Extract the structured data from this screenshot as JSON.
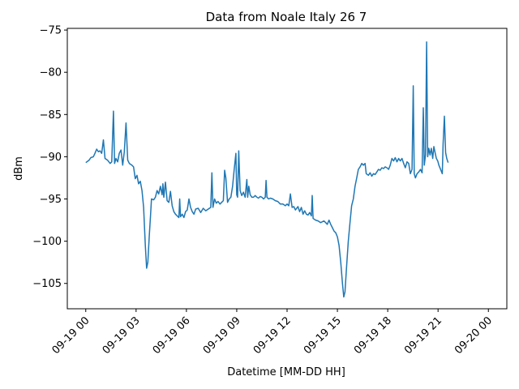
{
  "chart_data": {
    "type": "line",
    "title": "Data from Noale Italy 26 7",
    "xlabel": "Datetime [MM-DD HH]",
    "ylabel": "dBm",
    "x_ticks": [
      "09-19 00",
      "09-19 03",
      "09-19 06",
      "09-19 09",
      "09-19 12",
      "09-19 15",
      "09-19 18",
      "09-19 21",
      "09-20 00"
    ],
    "y_ticks": [
      -75,
      -80,
      -85,
      -90,
      -95,
      -100,
      -105
    ],
    "xlim_hours": [
      -1.1,
      25.1
    ],
    "ylim": [
      -108,
      -74.8
    ],
    "grid": false,
    "series": [
      {
        "color": "#1f77b4",
        "points": [
          [
            0.0,
            -90.7
          ],
          [
            0.2,
            -90.4
          ],
          [
            0.3,
            -90.1
          ],
          [
            0.45,
            -90.0
          ],
          [
            0.55,
            -89.6
          ],
          [
            0.65,
            -89.1
          ],
          [
            0.75,
            -89.4
          ],
          [
            0.85,
            -89.3
          ],
          [
            0.95,
            -89.6
          ],
          [
            1.05,
            -88.0
          ],
          [
            1.15,
            -90.2
          ],
          [
            1.3,
            -90.4
          ],
          [
            1.45,
            -90.8
          ],
          [
            1.55,
            -90.6
          ],
          [
            1.65,
            -84.6
          ],
          [
            1.72,
            -90.8
          ],
          [
            1.8,
            -90.2
          ],
          [
            1.9,
            -90.6
          ],
          [
            2.0,
            -89.6
          ],
          [
            2.1,
            -89.2
          ],
          [
            2.2,
            -91.0
          ],
          [
            2.3,
            -89.4
          ],
          [
            2.4,
            -86.0
          ],
          [
            2.5,
            -90.4
          ],
          [
            2.6,
            -90.8
          ],
          [
            2.75,
            -91.0
          ],
          [
            2.85,
            -91.2
          ],
          [
            2.95,
            -92.6
          ],
          [
            3.05,
            -92.2
          ],
          [
            3.15,
            -93.2
          ],
          [
            3.25,
            -92.9
          ],
          [
            3.35,
            -94.0
          ],
          [
            3.45,
            -96.0
          ],
          [
            3.55,
            -100.5
          ],
          [
            3.63,
            -103.2
          ],
          [
            3.7,
            -102.5
          ],
          [
            3.78,
            -99.5
          ],
          [
            3.86,
            -97.0
          ],
          [
            3.92,
            -95.0
          ],
          [
            4.05,
            -95.1
          ],
          [
            4.15,
            -94.8
          ],
          [
            4.25,
            -94.0
          ],
          [
            4.35,
            -94.4
          ],
          [
            4.45,
            -93.5
          ],
          [
            4.55,
            -94.5
          ],
          [
            4.6,
            -93.2
          ],
          [
            4.65,
            -94.8
          ],
          [
            4.75,
            -93.0
          ],
          [
            4.85,
            -95.2
          ],
          [
            4.95,
            -95.4
          ],
          [
            5.05,
            -94.1
          ],
          [
            5.15,
            -95.8
          ],
          [
            5.25,
            -96.5
          ],
          [
            5.35,
            -96.8
          ],
          [
            5.45,
            -97.0
          ],
          [
            5.55,
            -97.2
          ],
          [
            5.6,
            -95.0
          ],
          [
            5.65,
            -97.1
          ],
          [
            5.75,
            -96.8
          ],
          [
            5.85,
            -97.2
          ],
          [
            5.95,
            -96.5
          ],
          [
            6.05,
            -96.3
          ],
          [
            6.15,
            -95.0
          ],
          [
            6.25,
            -96.0
          ],
          [
            6.35,
            -96.5
          ],
          [
            6.45,
            -96.8
          ],
          [
            6.55,
            -96.2
          ],
          [
            6.7,
            -96.1
          ],
          [
            6.85,
            -96.6
          ],
          [
            7.0,
            -96.1
          ],
          [
            7.15,
            -96.4
          ],
          [
            7.3,
            -96.2
          ],
          [
            7.45,
            -96.0
          ],
          [
            7.52,
            -91.9
          ],
          [
            7.58,
            -96.0
          ],
          [
            7.68,
            -95.0
          ],
          [
            7.78,
            -95.5
          ],
          [
            7.88,
            -95.3
          ],
          [
            8.0,
            -95.6
          ],
          [
            8.1,
            -95.4
          ],
          [
            8.2,
            -95.2
          ],
          [
            8.28,
            -91.6
          ],
          [
            8.35,
            -92.5
          ],
          [
            8.45,
            -95.4
          ],
          [
            8.55,
            -95.0
          ],
          [
            8.65,
            -94.8
          ],
          [
            8.75,
            -93.5
          ],
          [
            8.85,
            -91.5
          ],
          [
            8.95,
            -89.6
          ],
          [
            9.0,
            -94.5
          ],
          [
            9.05,
            -94.8
          ],
          [
            9.12,
            -89.3
          ],
          [
            9.2,
            -94.0
          ],
          [
            9.3,
            -94.6
          ],
          [
            9.4,
            -94.2
          ],
          [
            9.5,
            -94.8
          ],
          [
            9.6,
            -92.7
          ],
          [
            9.65,
            -94.8
          ],
          [
            9.72,
            -93.5
          ],
          [
            9.8,
            -94.5
          ],
          [
            9.9,
            -94.8
          ],
          [
            10.0,
            -94.8
          ],
          [
            10.1,
            -94.6
          ],
          [
            10.2,
            -94.8
          ],
          [
            10.3,
            -94.9
          ],
          [
            10.4,
            -94.7
          ],
          [
            10.5,
            -94.8
          ],
          [
            10.6,
            -95.0
          ],
          [
            10.7,
            -94.8
          ],
          [
            10.75,
            -92.8
          ],
          [
            10.8,
            -94.8
          ],
          [
            10.9,
            -95.0
          ],
          [
            11.0,
            -94.9
          ],
          [
            11.15,
            -95.0
          ],
          [
            11.3,
            -95.2
          ],
          [
            11.45,
            -95.3
          ],
          [
            11.6,
            -95.6
          ],
          [
            11.75,
            -95.6
          ],
          [
            11.9,
            -95.8
          ],
          [
            12.0,
            -95.6
          ],
          [
            12.1,
            -95.8
          ],
          [
            12.2,
            -94.4
          ],
          [
            12.3,
            -96.0
          ],
          [
            12.4,
            -95.9
          ],
          [
            12.5,
            -96.3
          ],
          [
            12.65,
            -95.9
          ],
          [
            12.75,
            -96.5
          ],
          [
            12.85,
            -96.0
          ],
          [
            12.95,
            -96.8
          ],
          [
            13.05,
            -96.4
          ],
          [
            13.15,
            -96.8
          ],
          [
            13.25,
            -96.9
          ],
          [
            13.35,
            -96.6
          ],
          [
            13.45,
            -97.0
          ],
          [
            13.5,
            -94.6
          ],
          [
            13.55,
            -97.3
          ],
          [
            13.7,
            -97.5
          ],
          [
            13.85,
            -97.6
          ],
          [
            14.0,
            -97.8
          ],
          [
            14.1,
            -97.7
          ],
          [
            14.2,
            -97.6
          ],
          [
            14.3,
            -97.8
          ],
          [
            14.4,
            -98.0
          ],
          [
            14.5,
            -97.5
          ],
          [
            14.6,
            -98.0
          ],
          [
            14.7,
            -98.4
          ],
          [
            14.8,
            -98.8
          ],
          [
            14.9,
            -99.0
          ],
          [
            15.0,
            -99.5
          ],
          [
            15.1,
            -100.5
          ],
          [
            15.2,
            -102.5
          ],
          [
            15.3,
            -105.0
          ],
          [
            15.38,
            -106.6
          ],
          [
            15.45,
            -106.0
          ],
          [
            15.55,
            -103.0
          ],
          [
            15.65,
            -100.0
          ],
          [
            15.75,
            -97.8
          ],
          [
            15.85,
            -95.8
          ],
          [
            15.95,
            -95.0
          ],
          [
            16.05,
            -93.5
          ],
          [
            16.15,
            -92.5
          ],
          [
            16.25,
            -91.5
          ],
          [
            16.35,
            -91.2
          ],
          [
            16.45,
            -90.8
          ],
          [
            16.55,
            -91.0
          ],
          [
            16.65,
            -90.8
          ],
          [
            16.72,
            -92.0
          ],
          [
            16.85,
            -92.2
          ],
          [
            16.95,
            -91.9
          ],
          [
            17.05,
            -92.3
          ],
          [
            17.15,
            -92.0
          ],
          [
            17.25,
            -92.1
          ],
          [
            17.35,
            -91.8
          ],
          [
            17.45,
            -91.5
          ],
          [
            17.55,
            -91.6
          ],
          [
            17.65,
            -91.3
          ],
          [
            17.75,
            -91.4
          ],
          [
            17.85,
            -91.2
          ],
          [
            17.95,
            -91.3
          ],
          [
            18.05,
            -91.5
          ],
          [
            18.15,
            -91.0
          ],
          [
            18.25,
            -90.2
          ],
          [
            18.35,
            -90.5
          ],
          [
            18.45,
            -90.1
          ],
          [
            18.55,
            -90.6
          ],
          [
            18.65,
            -90.2
          ],
          [
            18.75,
            -90.5
          ],
          [
            18.85,
            -90.2
          ],
          [
            18.95,
            -90.8
          ],
          [
            19.05,
            -91.3
          ],
          [
            19.15,
            -90.6
          ],
          [
            19.25,
            -90.8
          ],
          [
            19.35,
            -92.0
          ],
          [
            19.45,
            -91.5
          ],
          [
            19.52,
            -81.6
          ],
          [
            19.58,
            -92.0
          ],
          [
            19.65,
            -92.5
          ],
          [
            19.75,
            -92.0
          ],
          [
            19.85,
            -91.8
          ],
          [
            19.95,
            -91.5
          ],
          [
            20.05,
            -91.9
          ],
          [
            20.12,
            -84.2
          ],
          [
            20.18,
            -91.0
          ],
          [
            20.25,
            -89.8
          ],
          [
            20.32,
            -76.4
          ],
          [
            20.38,
            -90.0
          ],
          [
            20.45,
            -89.0
          ],
          [
            20.52,
            -89.8
          ],
          [
            20.6,
            -89.0
          ],
          [
            20.68,
            -90.2
          ],
          [
            20.75,
            -88.8
          ],
          [
            20.82,
            -89.5
          ],
          [
            20.9,
            -90.2
          ],
          [
            20.98,
            -90.5
          ],
          [
            21.05,
            -91.0
          ],
          [
            21.15,
            -91.5
          ],
          [
            21.25,
            -92.0
          ],
          [
            21.3,
            -88.5
          ],
          [
            21.38,
            -85.2
          ],
          [
            21.45,
            -89.5
          ],
          [
            21.52,
            -90.2
          ],
          [
            21.6,
            -90.7
          ]
        ]
      }
    ]
  }
}
